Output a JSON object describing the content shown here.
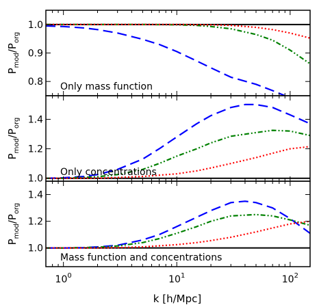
{
  "chart_data": {
    "type": "line",
    "xlabel": "k [h/Mpc]",
    "xscale": "log",
    "xlim": [
      0.7,
      150
    ],
    "xticks": [
      {
        "value": 1,
        "base": "10",
        "exp": "0"
      },
      {
        "value": 10,
        "base": "10",
        "exp": "1"
      },
      {
        "value": 100,
        "base": "10",
        "exp": "2"
      }
    ],
    "ylabel": {
      "base": "P",
      "num_sub": "mod",
      "den_base": "/P",
      "den_sub": "org"
    },
    "grid": false,
    "series_styles": [
      {
        "color": "#0000ff",
        "dash": "long-dash"
      },
      {
        "color": "#008000",
        "dash": "dash-dot-dot"
      },
      {
        "color": "#ff0000",
        "dash": "dotted"
      }
    ],
    "panels": [
      {
        "annotation": "Only mass function",
        "ylim": [
          0.75,
          1.05
        ],
        "yticks": [
          "0.8",
          "0.9",
          "1.0"
        ],
        "ytick_values": [
          0.8,
          0.9,
          1.0
        ],
        "reference_line": 1.0,
        "series": [
          {
            "x": [
              0.7,
              1,
              1.5,
              2,
              3,
              5,
              7,
              10,
              15,
              20,
              30,
              50,
              70,
              90
            ],
            "values": [
              0.995,
              0.993,
              0.988,
              0.982,
              0.97,
              0.948,
              0.93,
              0.905,
              0.872,
              0.848,
              0.815,
              0.79,
              0.768,
              0.75
            ]
          },
          {
            "x": [
              0.7,
              1,
              2,
              5,
              10,
              15,
              20,
              30,
              50,
              70,
              100,
              150
            ],
            "values": [
              1.0,
              1.0,
              1.0,
              1.0,
              0.999,
              0.997,
              0.993,
              0.985,
              0.965,
              0.945,
              0.91,
              0.862
            ]
          },
          {
            "x": [
              0.7,
              1,
              2,
              5,
              10,
              20,
              30,
              50,
              70,
              100,
              150
            ],
            "values": [
              1.0,
              1.0,
              1.0,
              1.0,
              1.0,
              0.999,
              0.997,
              0.99,
              0.982,
              0.97,
              0.952
            ]
          }
        ]
      },
      {
        "annotation": "Only concentrations",
        "ylim": [
          0.98,
          1.56
        ],
        "yticks": [
          "1.0",
          "1.2",
          "1.4"
        ],
        "ytick_values": [
          1.0,
          1.2,
          1.4
        ],
        "reference_line": 1.0,
        "series": [
          {
            "x": [
              0.7,
              1,
              1.5,
              2,
              3,
              5,
              7,
              10,
              15,
              20,
              30,
              40,
              50,
              70,
              100,
              150
            ],
            "values": [
              1.0,
              1.003,
              1.012,
              1.025,
              1.06,
              1.13,
              1.2,
              1.28,
              1.37,
              1.425,
              1.48,
              1.5,
              1.5,
              1.48,
              1.43,
              1.37
            ]
          },
          {
            "x": [
              0.7,
              1,
              2,
              3,
              5,
              7,
              10,
              15,
              20,
              30,
              50,
              70,
              100,
              150
            ],
            "values": [
              1.0,
              1.0,
              1.01,
              1.025,
              1.06,
              1.1,
              1.15,
              1.2,
              1.24,
              1.285,
              1.31,
              1.325,
              1.32,
              1.29
            ]
          },
          {
            "x": [
              0.7,
              1,
              2,
              3,
              5,
              10,
              15,
              20,
              30,
              50,
              70,
              100,
              150
            ],
            "values": [
              1.0,
              1.0,
              1.0,
              1.005,
              1.012,
              1.03,
              1.05,
              1.07,
              1.1,
              1.14,
              1.17,
              1.2,
              1.215
            ]
          }
        ]
      },
      {
        "annotation": "Mass function and concentrations",
        "ylim": [
          0.86,
          1.5
        ],
        "yticks": [
          "1.0",
          "1.2",
          "1.4"
        ],
        "ytick_values": [
          1.0,
          1.2,
          1.4
        ],
        "reference_line": 1.0,
        "series": [
          {
            "x": [
              0.7,
              1,
              1.5,
              2,
              3,
              5,
              7,
              10,
              15,
              20,
              30,
              40,
              50,
              70,
              100,
              150
            ],
            "values": [
              1.0,
              1.0,
              1.003,
              1.008,
              1.02,
              1.06,
              1.1,
              1.16,
              1.23,
              1.28,
              1.34,
              1.35,
              1.34,
              1.3,
              1.22,
              1.11
            ]
          },
          {
            "x": [
              0.7,
              1,
              2,
              3,
              5,
              7,
              10,
              15,
              20,
              30,
              50,
              70,
              100,
              150
            ],
            "values": [
              1.0,
              1.0,
              1.005,
              1.015,
              1.04,
              1.07,
              1.11,
              1.16,
              1.2,
              1.24,
              1.25,
              1.24,
              1.21,
              1.17
            ]
          },
          {
            "x": [
              0.7,
              1,
              2,
              3,
              5,
              10,
              15,
              20,
              30,
              50,
              70,
              100,
              150
            ],
            "values": [
              1.0,
              1.0,
              1.0,
              1.003,
              1.008,
              1.025,
              1.04,
              1.055,
              1.08,
              1.12,
              1.15,
              1.18,
              1.2
            ]
          }
        ]
      }
    ]
  }
}
